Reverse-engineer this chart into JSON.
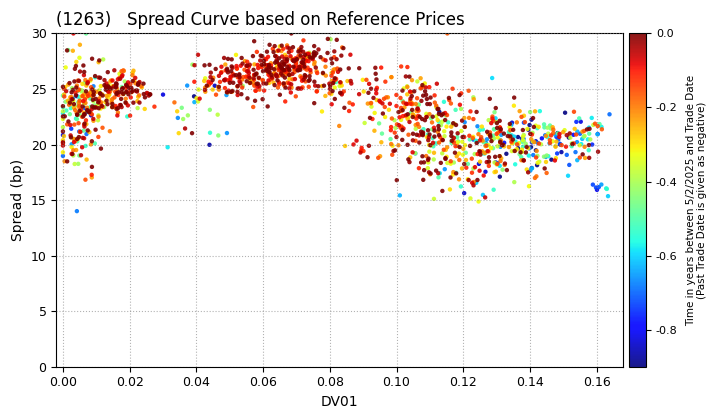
{
  "title": "(1263)   Spread Curve based on Reference Prices",
  "xlabel": "DV01",
  "ylabel": "Spread (bp)",
  "xlim": [
    -0.002,
    0.168
  ],
  "ylim": [
    0,
    30
  ],
  "xticks": [
    0.0,
    0.02,
    0.04,
    0.06,
    0.08,
    0.1,
    0.12,
    0.14,
    0.16
  ],
  "yticks": [
    0,
    5,
    10,
    15,
    20,
    25,
    30
  ],
  "colorbar_label": "Time in years between 5/2/2025 and Trade Date\n(Past Trade Date is given as negative)",
  "clim": [
    -0.9,
    0.0
  ],
  "colorbar_ticks": [
    0.0,
    -0.2,
    -0.4,
    -0.6,
    -0.8
  ],
  "seed": 42,
  "background_color": "#ffffff",
  "point_size": 10,
  "segments": [
    [
      150,
      0.004,
      0.003,
      22.5,
      2.8,
      -0.25,
      0.28
    ],
    [
      80,
      0.009,
      0.003,
      24.0,
      1.5,
      -0.15,
      0.2
    ],
    [
      60,
      0.013,
      0.003,
      24.5,
      1.2,
      -0.12,
      0.18
    ],
    [
      50,
      0.017,
      0.003,
      24.8,
      1.0,
      -0.1,
      0.15
    ],
    [
      40,
      0.021,
      0.003,
      24.8,
      0.8,
      -0.1,
      0.15
    ],
    [
      25,
      0.04,
      0.004,
      22.8,
      1.8,
      -0.45,
      0.3
    ],
    [
      15,
      0.043,
      0.003,
      25.5,
      1.0,
      -0.08,
      0.1
    ],
    [
      30,
      0.048,
      0.004,
      25.8,
      0.8,
      -0.08,
      0.1
    ],
    [
      35,
      0.053,
      0.004,
      25.5,
      1.0,
      -0.1,
      0.12
    ],
    [
      80,
      0.058,
      0.005,
      26.3,
      1.0,
      -0.1,
      0.15
    ],
    [
      80,
      0.063,
      0.005,
      27.0,
      1.0,
      -0.08,
      0.12
    ],
    [
      70,
      0.068,
      0.005,
      27.5,
      1.0,
      -0.07,
      0.1
    ],
    [
      60,
      0.073,
      0.005,
      27.2,
      1.1,
      -0.08,
      0.12
    ],
    [
      50,
      0.078,
      0.005,
      26.5,
      1.3,
      -0.1,
      0.15
    ],
    [
      30,
      0.083,
      0.004,
      25.0,
      1.5,
      -0.12,
      0.15
    ],
    [
      8,
      0.09,
      0.002,
      19.3,
      0.4,
      -0.07,
      0.05
    ],
    [
      5,
      0.094,
      0.002,
      24.5,
      0.5,
      -0.05,
      0.05
    ],
    [
      70,
      0.1,
      0.007,
      23.0,
      2.0,
      -0.1,
      0.15
    ],
    [
      70,
      0.105,
      0.006,
      22.0,
      2.2,
      -0.12,
      0.18
    ],
    [
      80,
      0.11,
      0.006,
      21.5,
      2.2,
      -0.15,
      0.2
    ],
    [
      70,
      0.115,
      0.006,
      20.5,
      2.2,
      -0.2,
      0.25
    ],
    [
      60,
      0.12,
      0.006,
      20.0,
      2.0,
      -0.25,
      0.3
    ],
    [
      50,
      0.125,
      0.005,
      19.5,
      2.0,
      -0.3,
      0.3
    ],
    [
      60,
      0.132,
      0.005,
      20.5,
      1.5,
      -0.25,
      0.3
    ],
    [
      60,
      0.138,
      0.005,
      20.0,
      1.5,
      -0.3,
      0.35
    ],
    [
      50,
      0.143,
      0.005,
      20.2,
      1.5,
      -0.35,
      0.35
    ],
    [
      40,
      0.148,
      0.005,
      19.8,
      1.5,
      -0.4,
      0.3
    ],
    [
      30,
      0.153,
      0.004,
      20.5,
      1.2,
      -0.35,
      0.3
    ],
    [
      20,
      0.158,
      0.003,
      21.0,
      1.0,
      -0.4,
      0.3
    ],
    [
      8,
      0.161,
      0.002,
      16.0,
      0.3,
      -0.7,
      0.1
    ]
  ]
}
